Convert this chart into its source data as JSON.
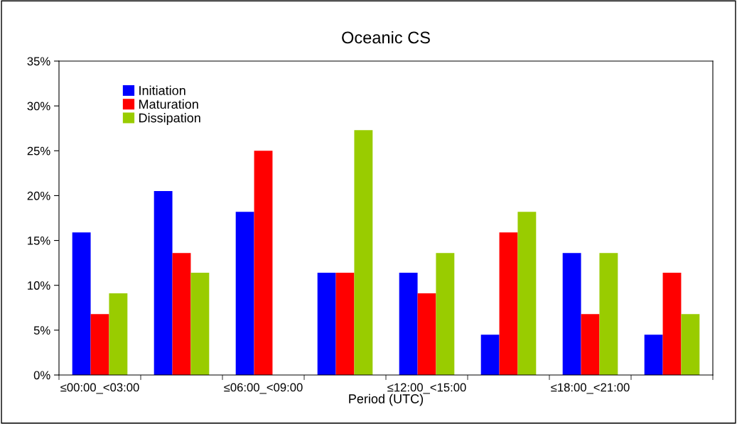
{
  "chart_data": {
    "type": "bar",
    "title": "Oceanic CS",
    "xlabel": "Period (UTC)",
    "categories": [
      "≤00:00_<03:00",
      null,
      "≤06:00_<09:00",
      null,
      "≤12:00_<15:00",
      null,
      "≤18:00_<21:00",
      null
    ],
    "series": [
      {
        "name": "Initiation",
        "color": "#0000ff",
        "values": [
          15.9,
          20.5,
          18.2,
          11.4,
          11.4,
          4.5,
          13.6,
          4.5
        ]
      },
      {
        "name": "Maturation",
        "color": "#ff0000",
        "values": [
          6.8,
          13.6,
          25.0,
          11.4,
          9.1,
          15.9,
          6.8,
          11.4
        ]
      },
      {
        "name": "Dissipation",
        "color": "#99cc00",
        "values": [
          9.1,
          11.4,
          0,
          27.3,
          13.6,
          18.2,
          13.6,
          6.8
        ]
      }
    ],
    "ylim": [
      0,
      35
    ],
    "yticks": [
      {
        "value": 0,
        "label": "0%"
      },
      {
        "value": 5,
        "label": "5%"
      },
      {
        "value": 10,
        "label": "10%"
      },
      {
        "value": 15,
        "label": "15%"
      },
      {
        "value": 20,
        "label": "20%"
      },
      {
        "value": 25,
        "label": "25%"
      },
      {
        "value": 30,
        "label": "30%"
      },
      {
        "value": 35,
        "label": "35%"
      }
    ],
    "grid": false,
    "legend": "top left"
  }
}
